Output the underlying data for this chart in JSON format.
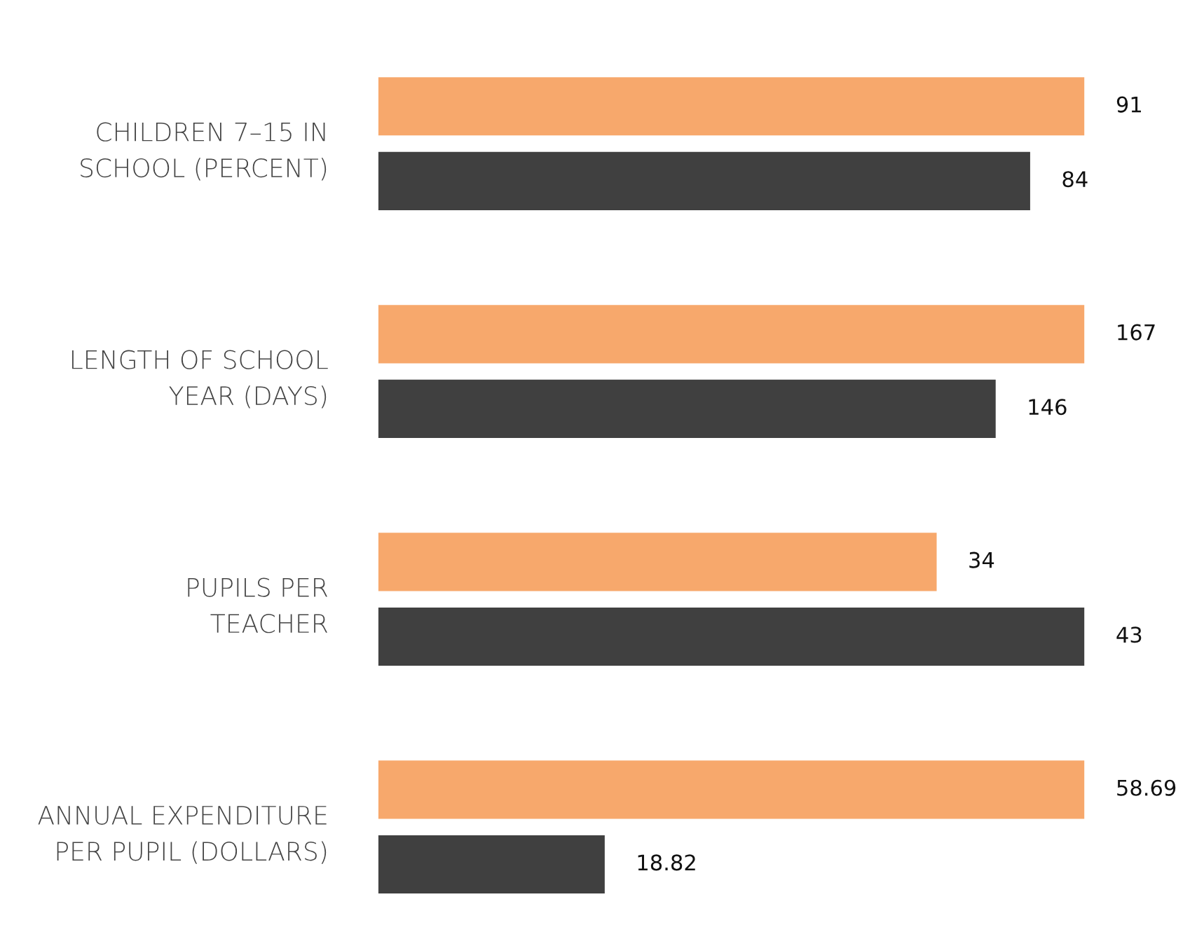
{
  "chart_data": [
    {
      "type": "bar",
      "orientation": "horizontal",
      "categories": [
        "CHILDREN 7–15 IN\nSCHOOL (PERCENT)"
      ],
      "series": [
        {
          "color": "#f7a86c",
          "values": [
            91
          ]
        },
        {
          "color": "#404040",
          "values": [
            84
          ]
        }
      ],
      "data_labels": true
    },
    {
      "type": "bar",
      "orientation": "horizontal",
      "categories": [
        "LENGTH OF SCHOOL\nYEAR (DAYS)"
      ],
      "series": [
        {
          "color": "#f7a86c",
          "values": [
            167
          ]
        },
        {
          "color": "#404040",
          "values": [
            146
          ]
        }
      ],
      "data_labels": true
    },
    {
      "type": "bar",
      "orientation": "horizontal",
      "categories": [
        "PUPILS PER\nTEACHER"
      ],
      "series": [
        {
          "color": "#f7a86c",
          "values": [
            34
          ]
        },
        {
          "color": "#404040",
          "values": [
            43
          ]
        }
      ],
      "data_labels": true
    },
    {
      "type": "bar",
      "orientation": "horizontal",
      "categories": [
        "ANNUAL EXPENDITURE\nPER PUPIL (DOLLARS)"
      ],
      "series": [
        {
          "color": "#f7a86c",
          "values": [
            58.69
          ]
        },
        {
          "color": "#404040",
          "values": [
            18.82
          ]
        }
      ],
      "data_labels": true
    }
  ]
}
